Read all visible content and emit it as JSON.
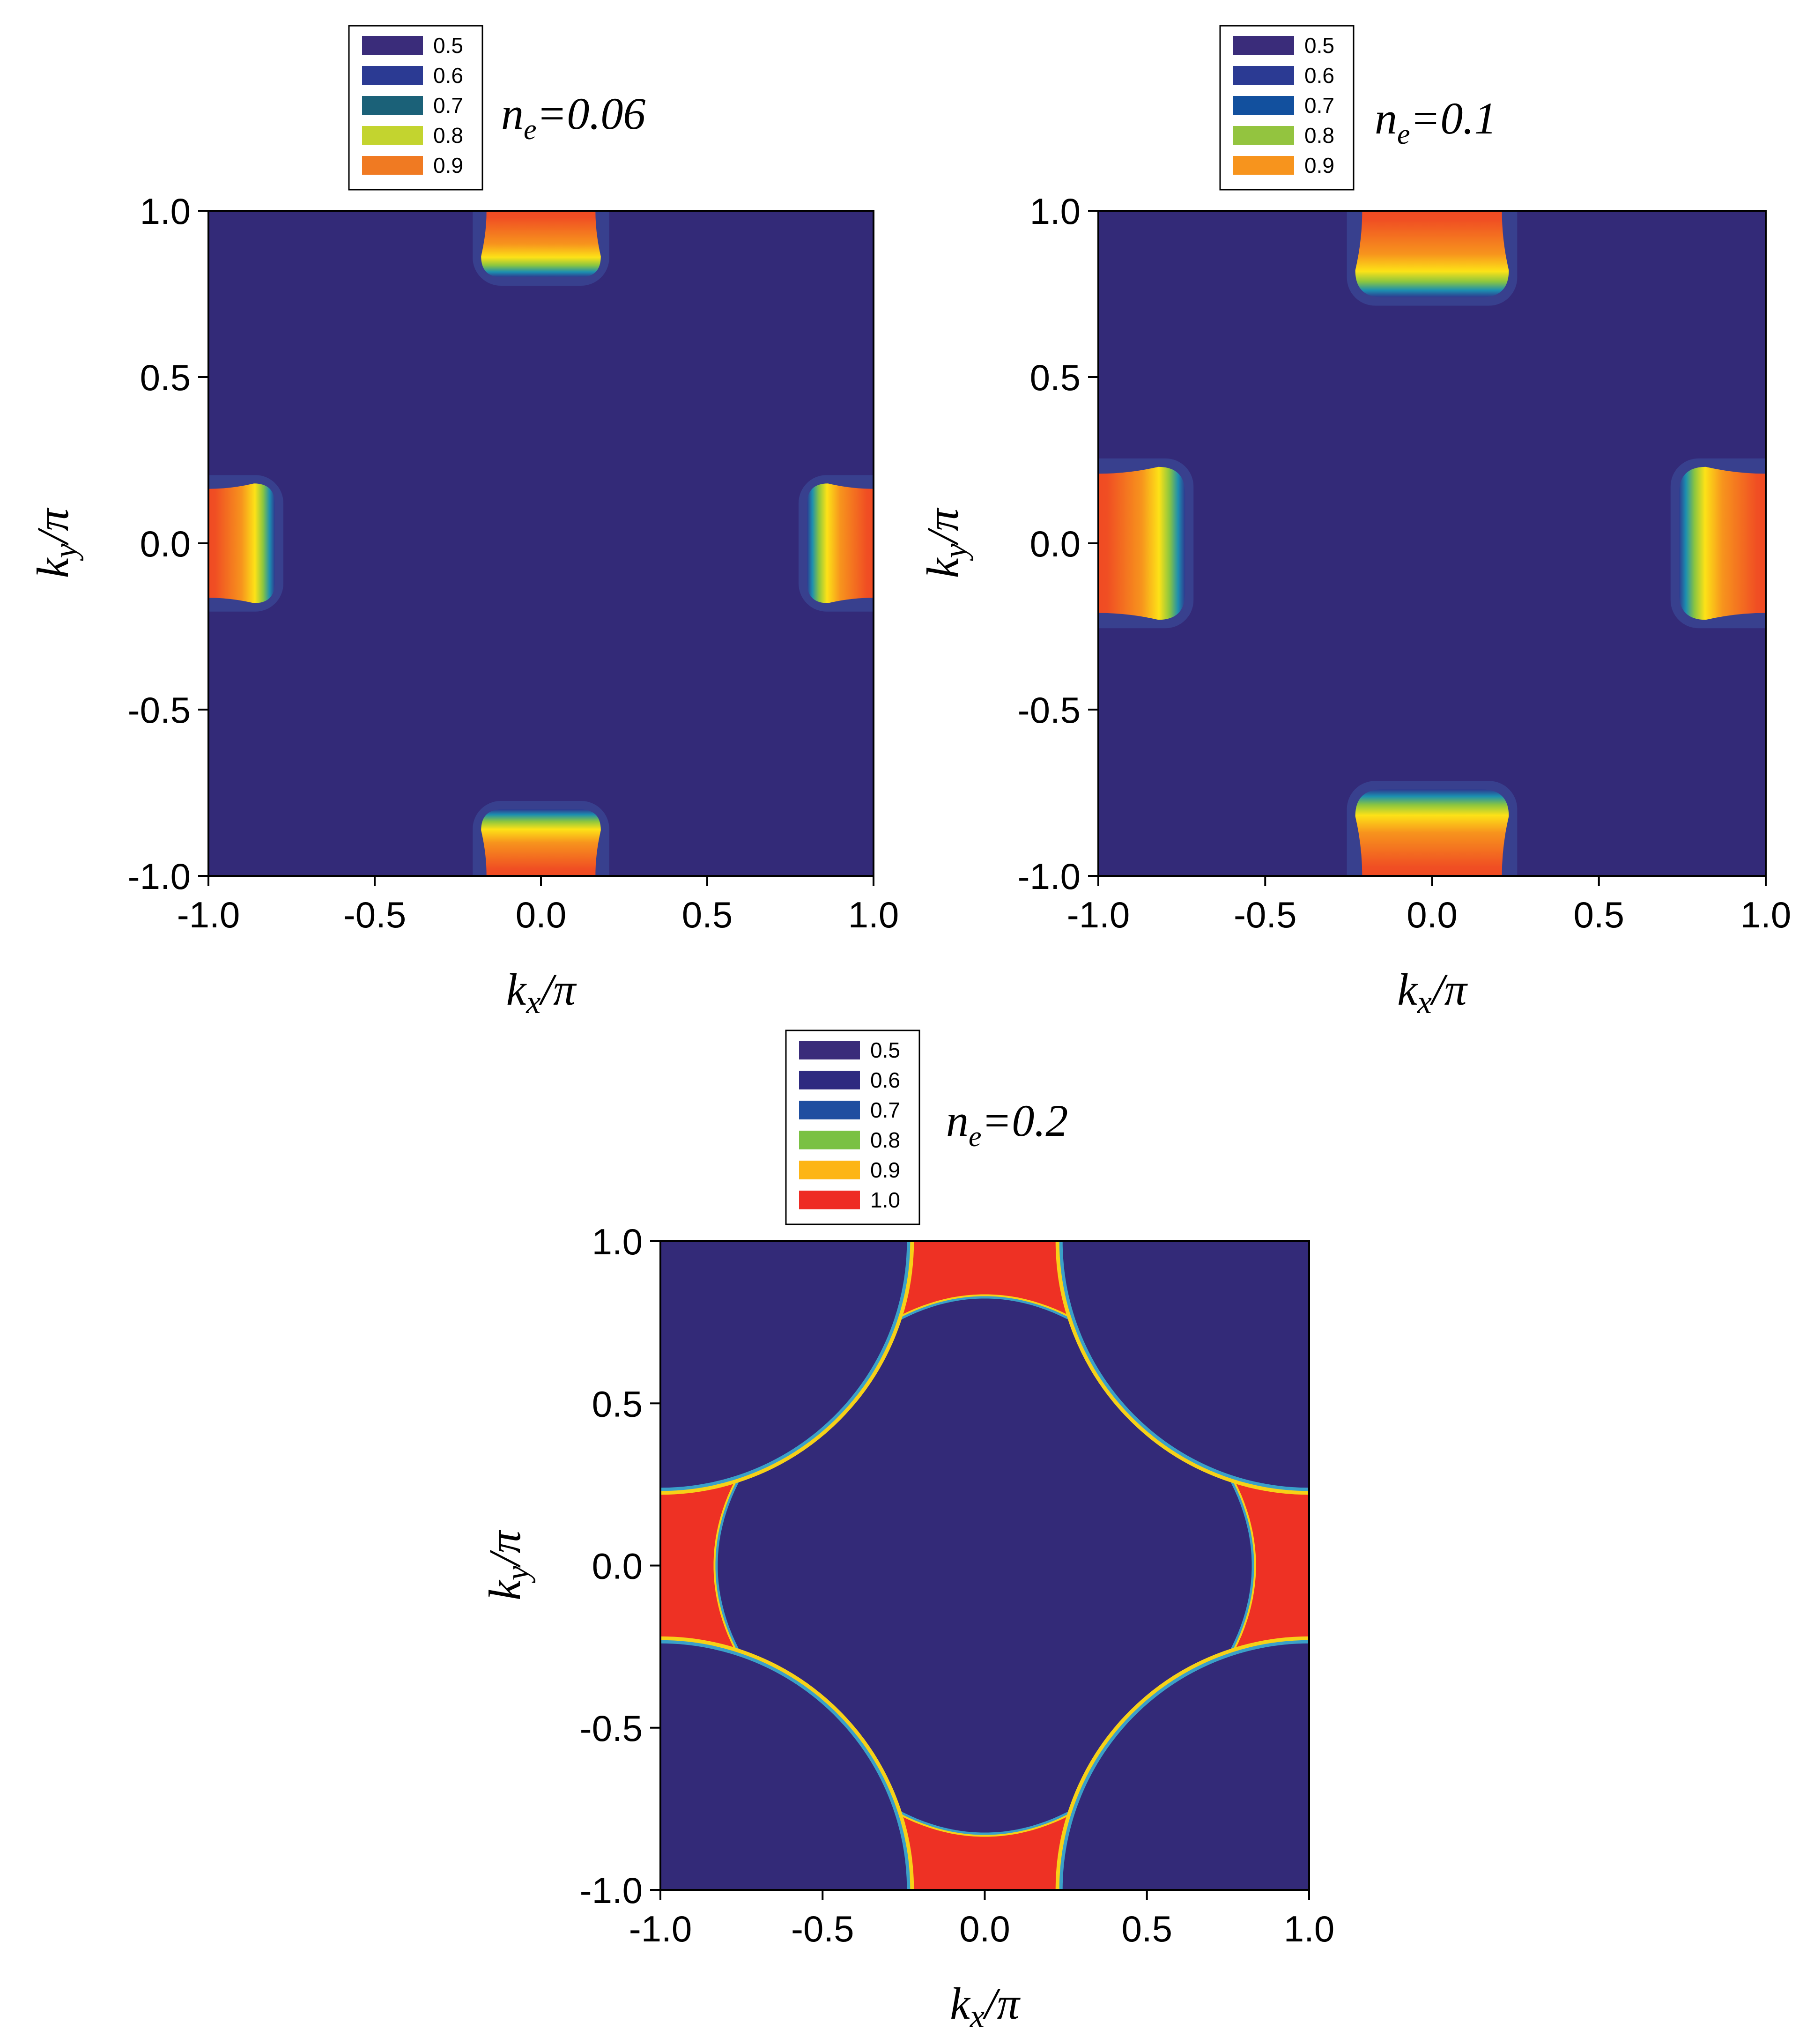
{
  "chart_data": [
    {
      "type": "heatmap",
      "title": "",
      "annotation": {
        "symbol": "n",
        "subscript": "e",
        "text": "=0.06"
      },
      "xlabel": {
        "symbol": "k",
        "subscript": "x",
        "suffix": "/π"
      },
      "ylabel": {
        "symbol": "k",
        "subscript": "y",
        "suffix": "/π"
      },
      "xlim": [
        -1.0,
        1.0
      ],
      "ylim": [
        -1.0,
        1.0
      ],
      "x_ticks": [
        "-1.0",
        "-0.5",
        "0.0",
        "0.5",
        "1.0"
      ],
      "y_ticks": [
        "-1.0",
        "-0.5",
        "0.0",
        "0.5",
        "1.0"
      ],
      "legend": [
        {
          "label": "0.5",
          "color": "#3a2c7a"
        },
        {
          "label": "0.6",
          "color": "#2b3a93"
        },
        {
          "label": "0.7",
          "color": "#1b6178"
        },
        {
          "label": "0.8",
          "color": "#c3d42f"
        },
        {
          "label": "0.9",
          "color": "#f07a22"
        }
      ],
      "background_color": "#332a78",
      "pockets": [
        {
          "kx": 0.0,
          "ky": 1.0,
          "half_width_kx": 0.18,
          "half_width_ky": 0.2
        },
        {
          "kx": 0.0,
          "ky": -1.0,
          "half_width_kx": 0.18,
          "half_width_ky": 0.2
        },
        {
          "kx": -1.0,
          "ky": 0.0,
          "half_width_kx": 0.2,
          "half_width_ky": 0.18
        },
        {
          "kx": 1.0,
          "ky": 0.0,
          "half_width_kx": 0.2,
          "half_width_ky": 0.18
        }
      ]
    },
    {
      "type": "heatmap",
      "title": "",
      "annotation": {
        "symbol": "n",
        "subscript": "e",
        "text": "=0.1"
      },
      "xlabel": {
        "symbol": "k",
        "subscript": "x",
        "suffix": "/π"
      },
      "ylabel": {
        "symbol": "k",
        "subscript": "y",
        "suffix": "/π"
      },
      "xlim": [
        -1.0,
        1.0
      ],
      "ylim": [
        -1.0,
        1.0
      ],
      "x_ticks": [
        "-1.0",
        "-0.5",
        "0.0",
        "0.5",
        "1.0"
      ],
      "y_ticks": [
        "-1.0",
        "-0.5",
        "0.0",
        "0.5",
        "1.0"
      ],
      "legend": [
        {
          "label": "0.5",
          "color": "#3a2c7a"
        },
        {
          "label": "0.6",
          "color": "#2b3a93"
        },
        {
          "label": "0.7",
          "color": "#12509e"
        },
        {
          "label": "0.8",
          "color": "#93c43f"
        },
        {
          "label": "0.9",
          "color": "#f7941d"
        }
      ],
      "background_color": "#332a78",
      "pockets": [
        {
          "kx": 0.0,
          "ky": 1.0,
          "half_width_kx": 0.23,
          "half_width_ky": 0.26
        },
        {
          "kx": 0.0,
          "ky": -1.0,
          "half_width_kx": 0.23,
          "half_width_ky": 0.26
        },
        {
          "kx": -1.0,
          "ky": 0.0,
          "half_width_kx": 0.26,
          "half_width_ky": 0.23
        },
        {
          "kx": 1.0,
          "ky": 0.0,
          "half_width_kx": 0.26,
          "half_width_ky": 0.23
        }
      ]
    },
    {
      "type": "heatmap",
      "title": "",
      "annotation": {
        "symbol": "n",
        "subscript": "e",
        "text": "=0.2"
      },
      "xlabel": {
        "symbol": "k",
        "subscript": "x",
        "suffix": "/π"
      },
      "ylabel": {
        "symbol": "k",
        "subscript": "y",
        "suffix": "/π"
      },
      "xlim": [
        -1.0,
        1.0
      ],
      "ylim": [
        -1.0,
        1.0
      ],
      "x_ticks": [
        "-1.0",
        "-0.5",
        "0.0",
        "0.5",
        "1.0"
      ],
      "y_ticks": [
        "-1.0",
        "-0.5",
        "0.0",
        "0.5",
        "1.0"
      ],
      "legend": [
        {
          "label": "0.5",
          "color": "#3a2c7a"
        },
        {
          "label": "0.6",
          "color": "#2e2a80"
        },
        {
          "label": "0.7",
          "color": "#1f4ea0"
        },
        {
          "label": "0.8",
          "color": "#7ac143"
        },
        {
          "label": "0.9",
          "color": "#fdb515"
        },
        {
          "label": "1.0",
          "color": "#ee2b24"
        }
      ],
      "background_color": "#332a78",
      "band_color": "#ee3124",
      "inner_boundary": {
        "radius_kx": 0.76,
        "radius_ky": 0.76,
        "shape": "rounded-diamond"
      },
      "corner_boundary_radius": 0.76
    }
  ]
}
